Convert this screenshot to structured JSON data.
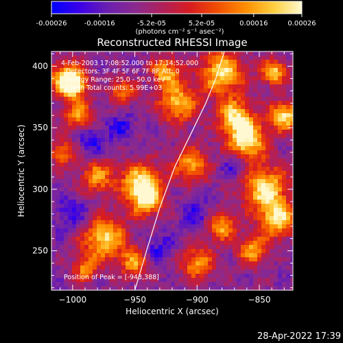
{
  "colorbar": {
    "tick_labels": [
      "-0.00026",
      "-0.00016",
      "-5.2e-05",
      "5.2e-05",
      "0.00016",
      "0.00026"
    ],
    "tick_values": [
      -0.00026,
      -0.00016,
      -5.2e-05,
      5.2e-05,
      0.00016,
      0.00026
    ],
    "range": [
      -0.00026,
      0.00026
    ],
    "units_label": "(photons cm⁻² s⁻¹ asec⁻²)",
    "colormap": [
      "#0000ff",
      "#3a00e8",
      "#6a1fb0",
      "#8a2a90",
      "#b0205a",
      "#d81c20",
      "#f25000",
      "#ff9000",
      "#ffd040",
      "#fff8d0"
    ]
  },
  "chart_data": {
    "type": "heatmap",
    "title": "Reconstructed RHESSI Image",
    "xlabel": "Heliocentric X (arcsec)",
    "ylabel": "Heliocentric Y (arcsec)",
    "xlim": [
      -1017,
      -823
    ],
    "ylim": [
      218,
      412
    ],
    "x_ticks": [
      -1000,
      -950,
      -900,
      -850
    ],
    "x_tick_labels": [
      "−1000",
      "−950",
      "−900",
      "−850"
    ],
    "y_ticks": [
      250,
      300,
      350,
      400
    ],
    "y_tick_labels": [
      "250",
      "300",
      "350",
      "400"
    ],
    "info_lines": [
      "4-Feb-2003 17:08:52.000 to 17:14:52.000",
      "Detectors: 3F 4F 5F 6F 7F 8F  Att: 0",
      "Energy Range: 25.0 - 50.0 keV",
      "Clean    Total counts: 5.99E+03"
    ],
    "peak_text": "Position of Peak = [-943,388]",
    "peak_position": [
      -943,
      388
    ],
    "limb_curve": [
      [
        -950,
        218
      ],
      [
        -940,
        252
      ],
      [
        -930,
        285
      ],
      [
        -918,
        318
      ],
      [
        -905,
        345
      ],
      [
        -893,
        370
      ],
      [
        -885,
        390
      ],
      [
        -878,
        412
      ]
    ],
    "grid": false,
    "legend": "none"
  },
  "footer": {
    "timestamp": "28-Apr-2022 17:39"
  }
}
